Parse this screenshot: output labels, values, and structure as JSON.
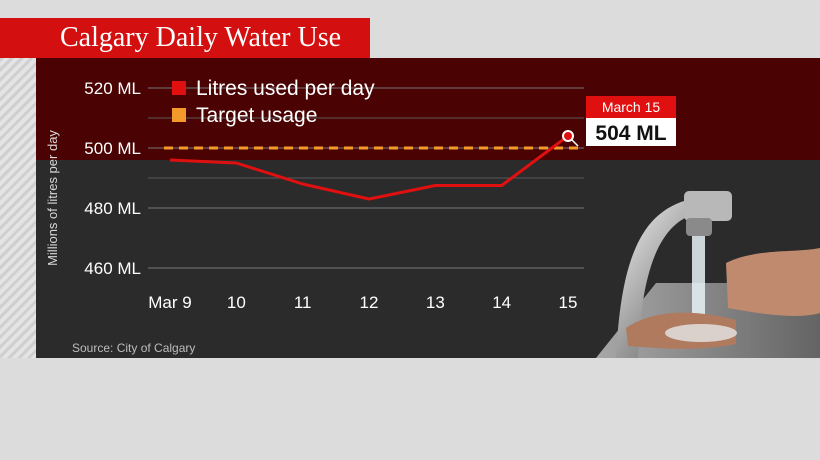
{
  "header": {
    "title": "Calgary Daily Water Use"
  },
  "chart_data": {
    "type": "line",
    "title": "Calgary Daily Water Use",
    "ylabel": "Millions of litres per day",
    "xlabel": "",
    "categories": [
      "Mar 9",
      "10",
      "11",
      "12",
      "13",
      "14",
      "15"
    ],
    "ylim": [
      450,
      530
    ],
    "yticks": [
      460,
      480,
      500,
      520
    ],
    "ytick_suffix": " ML",
    "series": [
      {
        "name": "Litres used per day",
        "color": "#e01010",
        "values": [
          496,
          495,
          488,
          483,
          487.5,
          487.5,
          504
        ]
      }
    ],
    "target": {
      "name": "Target usage",
      "value": 500,
      "color": "#f39a2b"
    },
    "legend": {
      "placement": "top-left"
    },
    "annotation": {
      "label": "March 15",
      "value_text": "504 ML",
      "index": 6
    },
    "grid": true,
    "source": "Source: City of Calgary"
  }
}
